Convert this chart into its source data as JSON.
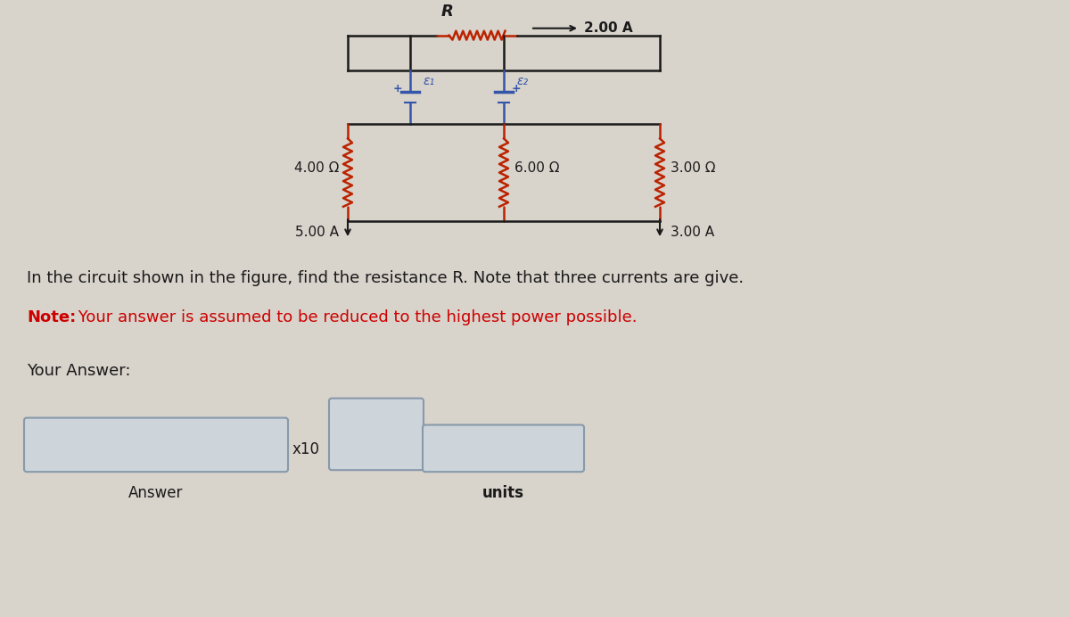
{
  "bg_color": "#d8d3cb",
  "title_text": "In the circuit shown in the figure, find the resistance R. Note that three currents are give.",
  "note_bold": "Note:",
  "note_rest": " Your answer is assumed to be reduced to the highest power possible.",
  "your_answer_text": "Your Answer:",
  "answer_label": "Answer",
  "units_label": "units",
  "x10_label": "x10",
  "R_label": "R",
  "current_top": "2.00 A",
  "R1_label": "4.00 Ω",
  "I1_label": "5.00 A",
  "R2_label": "6.00 Ω",
  "R3_label": "3.00 Ω",
  "I3_label": "3.00 A",
  "eps1_label": "ε₁",
  "eps2_label": "ε₂",
  "text_color": "#1a1a1a",
  "note_color": "#cc0000",
  "resistor_color": "#bb2200",
  "wire_color": "#1a1a1a",
  "battery_color": "#3355aa",
  "box_edge_color": "#8899aa",
  "box_face_color": "#cdd5db"
}
